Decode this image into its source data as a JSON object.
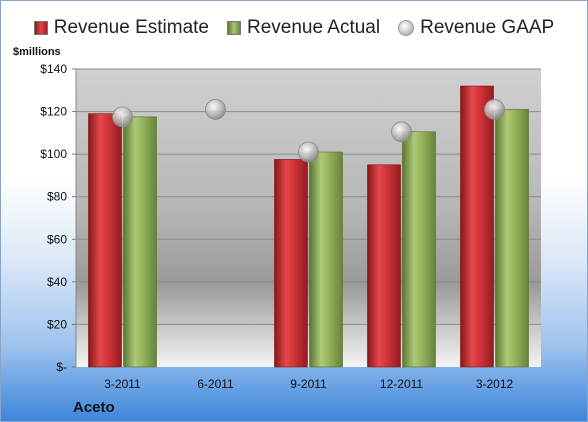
{
  "chart_data": {
    "type": "bar",
    "categories": [
      "3-2011",
      "6-2011",
      "9-2011",
      "12-2011",
      "3-2012"
    ],
    "series": [
      {
        "name": "Revenue Estimate",
        "kind": "bar",
        "color": "#c0282d",
        "values": [
          119,
          null,
          97.5,
          95,
          132
        ]
      },
      {
        "name": "Revenue Actual",
        "kind": "bar",
        "color": "#8aaa55",
        "values": [
          117.5,
          null,
          101,
          110.5,
          121
        ]
      },
      {
        "name": "Revenue GAAP",
        "kind": "marker",
        "color": "#b5b5b5",
        "values": [
          117.5,
          121,
          101,
          110.5,
          121
        ]
      }
    ],
    "ylabel": "$millions",
    "ylim": [
      0,
      140
    ],
    "yticks": [
      0,
      20,
      40,
      60,
      80,
      100,
      120,
      140
    ],
    "ytick_labels": [
      "$-",
      "$20",
      "$40",
      "$60",
      "$80",
      "$100",
      "$120",
      "$140"
    ],
    "grid": true,
    "legend": "top"
  },
  "footer": {
    "company": "Aceto"
  }
}
